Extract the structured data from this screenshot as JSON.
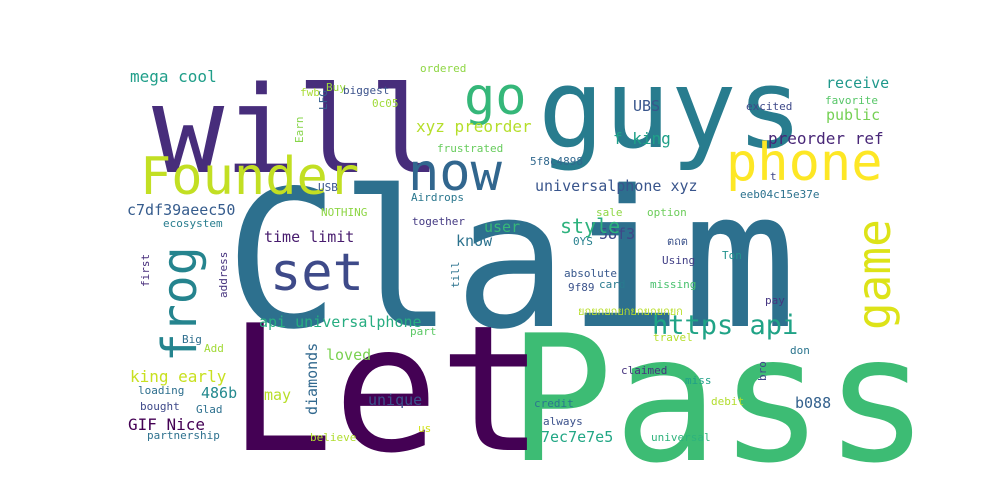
{
  "word_cloud": {
    "words": [
      {
        "text": "Claim",
        "color": "#2d708e",
        "vertical": false
      },
      {
        "text": "Pass",
        "color": "#3dbc74",
        "vertical": false
      },
      {
        "text": "Let",
        "color": "#440154",
        "vertical": false
      },
      {
        "text": "guys",
        "color": "#287c8e",
        "vertical": false
      },
      {
        "text": "will",
        "color": "#472d7b",
        "vertical": false
      },
      {
        "text": "Founder",
        "color": "#c2df23",
        "vertical": false
      },
      {
        "text": "now",
        "color": "#31668e",
        "vertical": false
      },
      {
        "text": "go",
        "color": "#35b779",
        "vertical": false
      },
      {
        "text": "phone",
        "color": "#fde725",
        "vertical": false
      },
      {
        "text": "set",
        "color": "#3e4a89",
        "vertical": false
      },
      {
        "text": "frog",
        "color": "#25848e",
        "vertical": true
      },
      {
        "text": "game",
        "color": "#dde318",
        "vertical": true
      },
      {
        "text": "https api",
        "color": "#20a386",
        "vertical": false
      },
      {
        "text": "mega cool",
        "color": "#1f9e89",
        "vertical": false
      },
      {
        "text": "xyz preorder",
        "color": "#b5de2b",
        "vertical": false
      },
      {
        "text": "f king",
        "color": "#1fa088",
        "vertical": false
      },
      {
        "text": "preorder ref",
        "color": "#482677",
        "vertical": false
      },
      {
        "text": "receive",
        "color": "#1f988b",
        "vertical": false
      },
      {
        "text": "public",
        "color": "#75d054",
        "vertical": false
      },
      {
        "text": "UBS",
        "color": "#39568c",
        "vertical": false
      },
      {
        "text": "58f3",
        "color": "#3f4788",
        "vertical": false
      },
      {
        "text": "universalphone xyz",
        "color": "#39558c",
        "vertical": false
      },
      {
        "text": "c7df39aeec50",
        "color": "#365c8d",
        "vertical": false
      },
      {
        "text": "time limit",
        "color": "#481c6e",
        "vertical": false
      },
      {
        "text": "style",
        "color": "#2db27d",
        "vertical": false
      },
      {
        "text": "user",
        "color": "#37b878",
        "vertical": false
      },
      {
        "text": "know",
        "color": "#2c728e",
        "vertical": false
      },
      {
        "text": "api universalphone",
        "color": "#27ad81",
        "vertical": false
      },
      {
        "text": "loved",
        "color": "#7ad151",
        "vertical": false
      },
      {
        "text": "king early",
        "color": "#c8e020",
        "vertical": false
      },
      {
        "text": "diamonds",
        "color": "#31688e",
        "vertical": true
      },
      {
        "text": "486b",
        "color": "#23898e",
        "vertical": false
      },
      {
        "text": "GIF Nice",
        "color": "#440154",
        "vertical": false
      },
      {
        "text": "may",
        "color": "#b8de29",
        "vertical": false
      },
      {
        "text": "unique",
        "color": "#3b528b",
        "vertical": false
      },
      {
        "text": "b088",
        "color": "#34618d",
        "vertical": false
      },
      {
        "text": "7ec7e7e5",
        "color": "#22a785",
        "vertical": false
      },
      {
        "text": "credit",
        "color": "#2a778e",
        "vertical": false
      },
      {
        "text": "ordered",
        "color": "#8fd744",
        "vertical": false
      },
      {
        "text": "biggest",
        "color": "#3b528b",
        "vertical": false
      },
      {
        "text": "0c05",
        "color": "#a0da39",
        "vertical": false
      },
      {
        "text": "Buy",
        "color": "#9bd93c",
        "vertical": false
      },
      {
        "text": "fwb",
        "color": "#a8db34",
        "vertical": false
      },
      {
        "text": "LFG",
        "color": "#355f8d",
        "vertical": true
      },
      {
        "text": "Earn",
        "color": "#86d549",
        "vertical": true
      },
      {
        "text": "frustrated",
        "color": "#67cc5c",
        "vertical": false
      },
      {
        "text": "5f8c4898",
        "color": "#31688e",
        "vertical": false
      },
      {
        "text": "excited",
        "color": "#3e4989",
        "vertical": false
      },
      {
        "text": "favorite",
        "color": "#56c667",
        "vertical": false
      },
      {
        "text": "t",
        "color": "#3f4788",
        "vertical": false
      },
      {
        "text": "eeb04c15e37e",
        "color": "#2c728e",
        "vertical": false
      },
      {
        "text": "USB",
        "color": "#3a548c",
        "vertical": false
      },
      {
        "text": "Airdrops",
        "color": "#2a778e",
        "vertical": false
      },
      {
        "text": "NOTHING",
        "color": "#8ed645",
        "vertical": false
      },
      {
        "text": "together",
        "color": "#443a83",
        "vertical": false
      },
      {
        "text": "sale",
        "color": "#8fd744",
        "vertical": false
      },
      {
        "text": "option",
        "color": "#6ccd5a",
        "vertical": false
      },
      {
        "text": "ecosystem",
        "color": "#287d8e",
        "vertical": false
      },
      {
        "text": "0YS",
        "color": "#27808e",
        "vertical": false
      },
      {
        "text": "ตถต",
        "color": "#3b528b",
        "vertical": false
      },
      {
        "text": "absolute",
        "color": "#38588c",
        "vertical": false
      },
      {
        "text": "Using",
        "color": "#424086",
        "vertical": false
      },
      {
        "text": "Ton",
        "color": "#21918c",
        "vertical": false
      },
      {
        "text": "9f89",
        "color": "#3b528b",
        "vertical": false
      },
      {
        "text": "card",
        "color": "#297a8e",
        "vertical": false
      },
      {
        "text": "missing",
        "color": "#48c16e",
        "vertical": false
      },
      {
        "text": "first",
        "color": "#472d7b",
        "vertical": true
      },
      {
        "text": "address",
        "color": "#46337e",
        "vertical": true
      },
      {
        "text": "till",
        "color": "#2c738e",
        "vertical": true
      },
      {
        "text": "pay",
        "color": "#453581",
        "vertical": false
      },
      {
        "text": "ยกยกยกยกยกยกยกยก",
        "color": "#b8de29",
        "vertical": false
      },
      {
        "text": "part",
        "color": "#5ac864",
        "vertical": false
      },
      {
        "text": "Big",
        "color": "#2e6e8e",
        "vertical": false
      },
      {
        "text": "Add",
        "color": "#a2da37",
        "vertical": false
      },
      {
        "text": "travel",
        "color": "#b5de2b",
        "vertical": false
      },
      {
        "text": "don",
        "color": "#2b758e",
        "vertical": false
      },
      {
        "text": "loading",
        "color": "#2e6f8e",
        "vertical": false
      },
      {
        "text": "claimed",
        "color": "#46337e",
        "vertical": false
      },
      {
        "text": "bro",
        "color": "#3f4889",
        "vertical": true
      },
      {
        "text": "miss",
        "color": "#1fa088",
        "vertical": false
      },
      {
        "text": "bought",
        "color": "#3e4989",
        "vertical": false
      },
      {
        "text": "Glad",
        "color": "#2d708e",
        "vertical": false
      },
      {
        "text": "debit",
        "color": "#b2dd2d",
        "vertical": false
      },
      {
        "text": "always",
        "color": "#3b518b",
        "vertical": false
      },
      {
        "text": "partnership",
        "color": "#2d718e",
        "vertical": false
      },
      {
        "text": "believe",
        "color": "#b0dd2f",
        "vertical": false
      },
      {
        "text": "us",
        "color": "#d2e21b",
        "vertical": false
      },
      {
        "text": "universal",
        "color": "#2eb37c",
        "vertical": false
      }
    ]
  }
}
